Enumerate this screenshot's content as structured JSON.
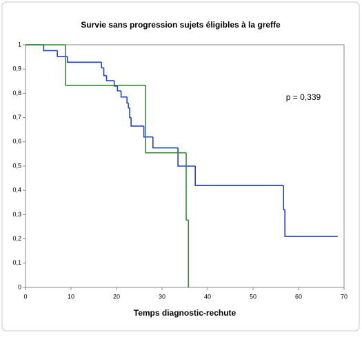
{
  "chart_data": {
    "type": "step",
    "title": "Survie sans progression  sujets éligibles à la greffe",
    "x_label": "Temps diagnostic-rechute",
    "annotation": "p = 0,339",
    "xlim": [
      0,
      70
    ],
    "xticks": [
      0,
      10,
      20,
      30,
      40,
      50,
      60,
      70
    ],
    "ylim": [
      0,
      1
    ],
    "yticks": [
      0,
      {
        "value": 0.1,
        "label": "0,1"
      },
      {
        "value": 0.2,
        "label": "0,2"
      },
      {
        "value": 0.3,
        "label": "0,3"
      },
      {
        "value": 0.4,
        "label": "0,4"
      },
      {
        "value": 0.5,
        "label": "0,5"
      },
      {
        "value": 0.6,
        "label": "0,6"
      },
      {
        "value": 0.7,
        "label": "0,7"
      },
      {
        "value": 0.8,
        "label": "0,8"
      },
      {
        "value": 0.9,
        "label": "0,9"
      },
      1
    ],
    "series": [
      {
        "color": "#1f3fcf",
        "x": [
          0,
          4,
          7,
          9.2,
          16.7,
          17.2,
          17.8,
          19.5,
          20.2,
          21,
          22.3,
          22.6,
          22.9,
          23.2,
          26,
          28,
          33.5,
          37.3,
          56.7,
          57,
          68.6
        ],
        "values": [
          1,
          0.976,
          0.952,
          0.928,
          0.905,
          0.873,
          0.852,
          0.83,
          0.81,
          0.785,
          0.76,
          0.74,
          0.7,
          0.665,
          0.62,
          0.575,
          0.5,
          0.42,
          0.32,
          0.21,
          0.21
        ]
      },
      {
        "color": "#2e8b2e",
        "x": [
          0,
          8.8,
          26.4,
          35.3,
          35.8
        ],
        "values": [
          1,
          0.833,
          0.555,
          0.278,
          0
        ]
      }
    ]
  }
}
